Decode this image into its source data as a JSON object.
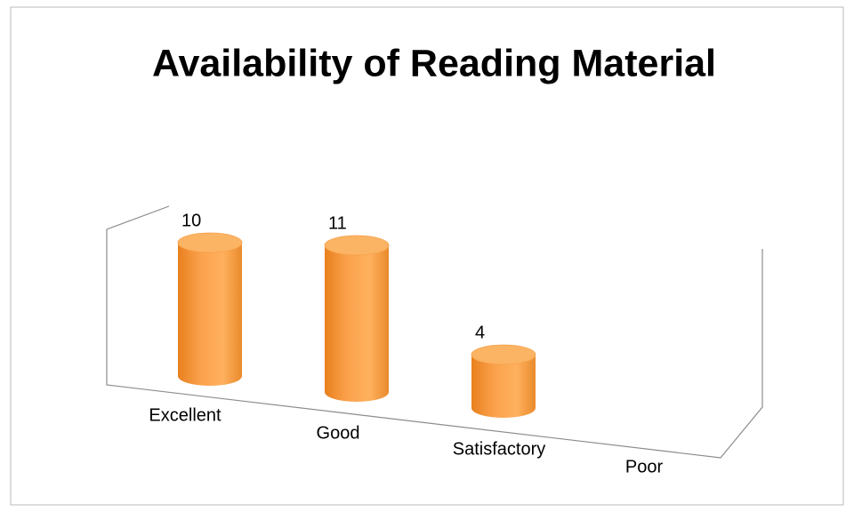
{
  "chart_data": {
    "type": "bar3d",
    "title": "Availability of Reading Material",
    "categories": [
      "Excellent",
      "Good",
      "Satisfactory",
      "Poor"
    ],
    "values": [
      10,
      11,
      4,
      null
    ],
    "color": "#f79646"
  }
}
